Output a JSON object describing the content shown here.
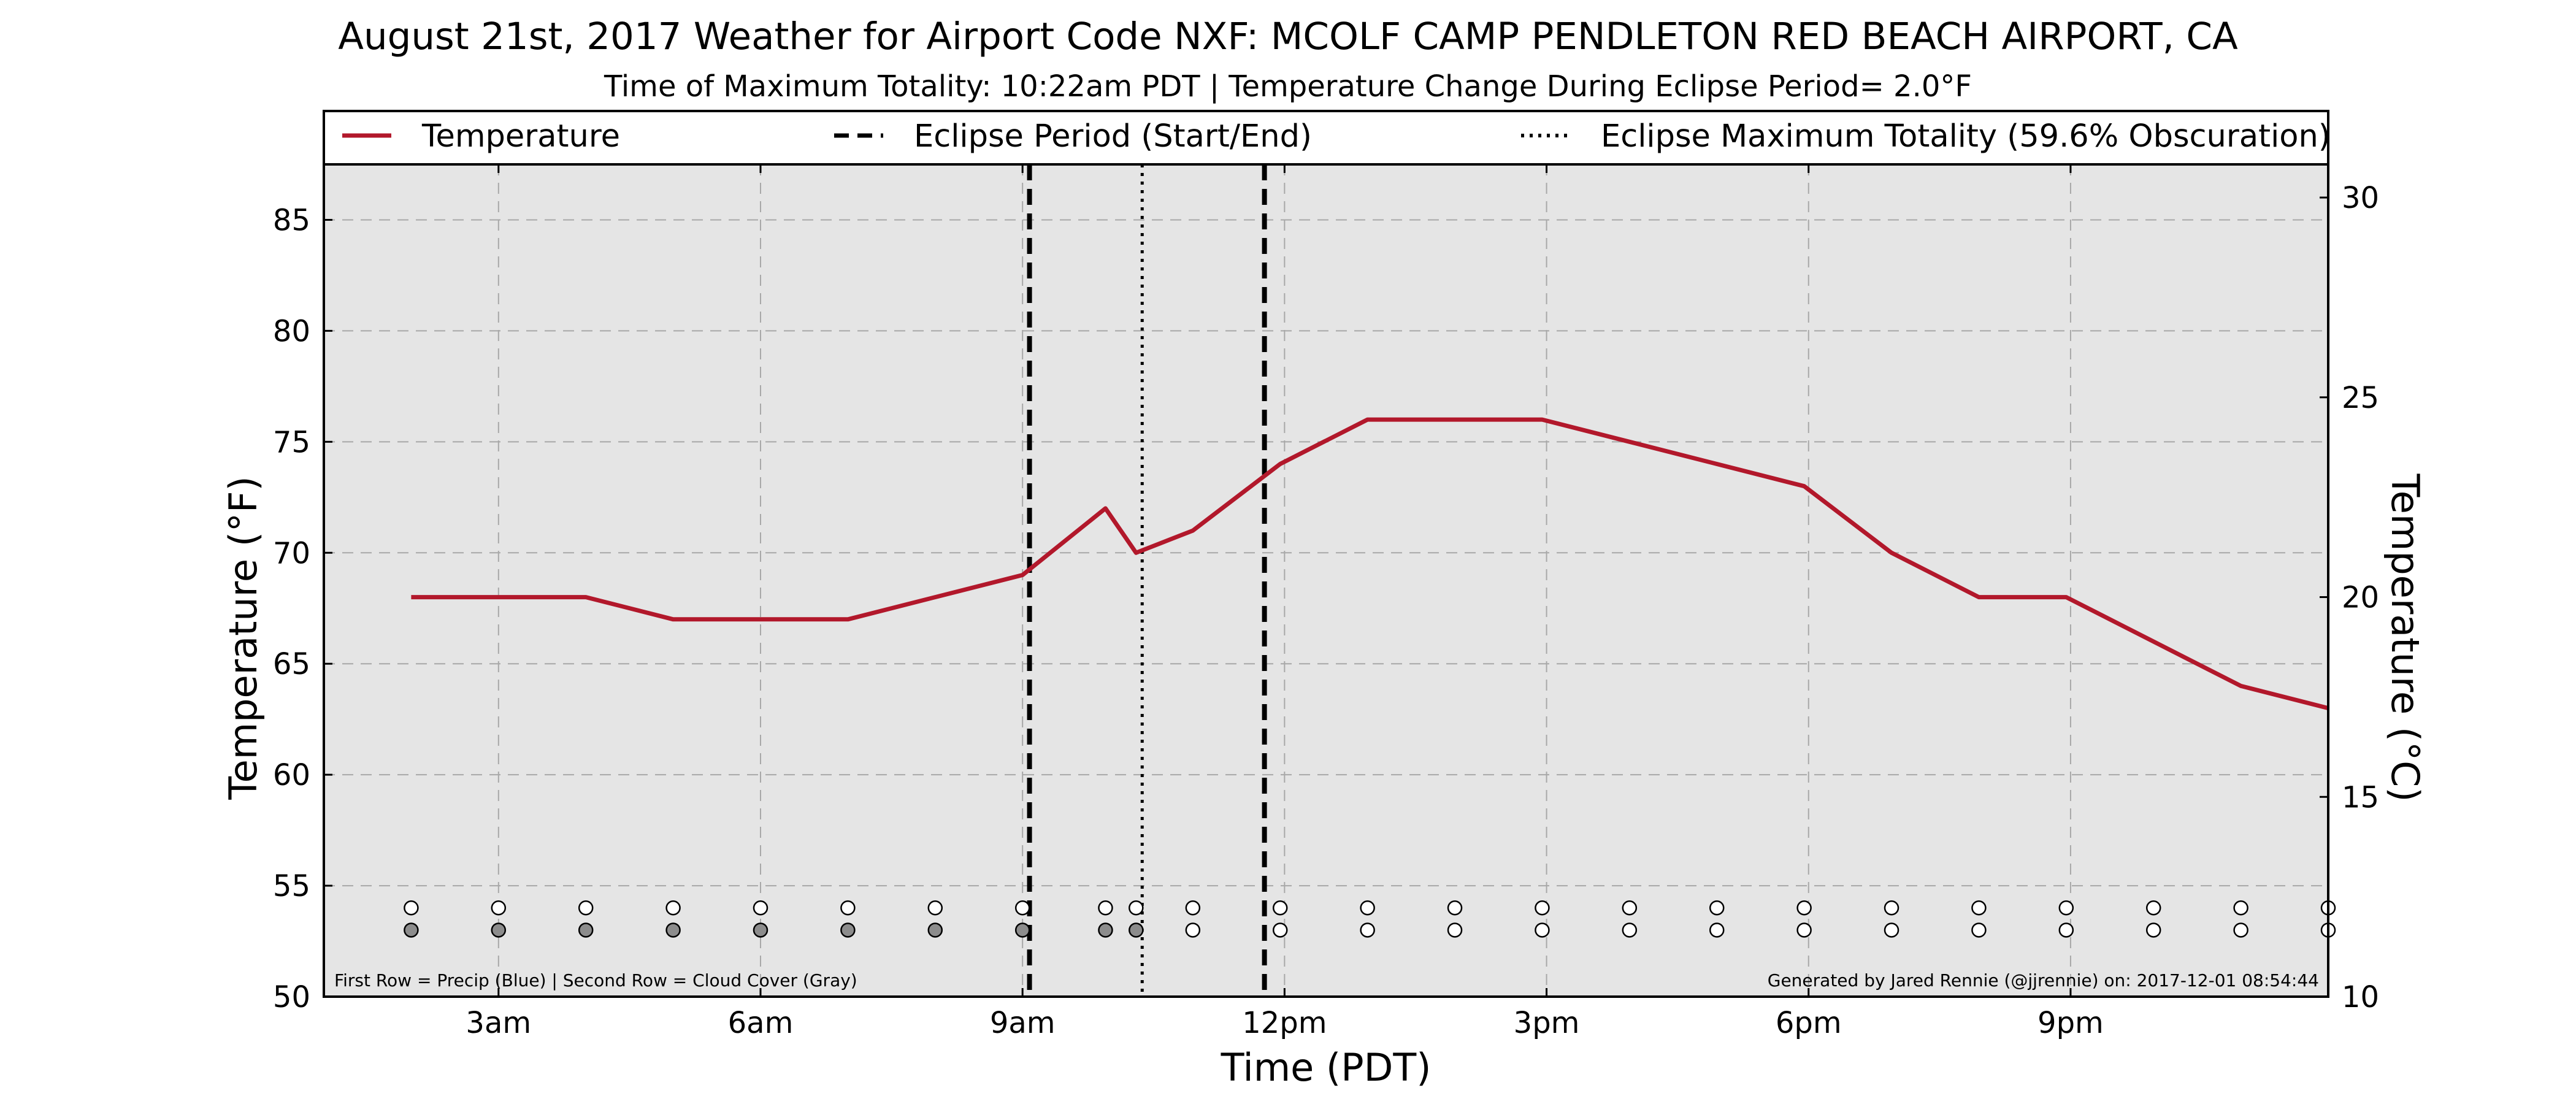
{
  "chart_data": {
    "type": "line",
    "title": "August 21st, 2017 Weather for Airport Code NXF: MCOLF CAMP PENDLETON RED BEACH AIRPORT, CA",
    "subtitle": "Time of Maximum Totality: 10:22am PDT | Temperature Change During Eclipse Period= 2.0°F",
    "xlabel": "Time (PDT)",
    "ylabel": "Temperature (°F)",
    "ylabel_right": "Temperature (°C)",
    "xlim": [
      1.0,
      23.95
    ],
    "ylim": [
      50,
      87.5
    ],
    "ylim_right": [
      10,
      30.83
    ],
    "x_ticks": [
      3,
      6,
      9,
      12,
      15,
      18,
      21
    ],
    "x_tick_labels": [
      "3am",
      "6am",
      "9am",
      "12pm",
      "3pm",
      "6pm",
      "9pm"
    ],
    "y_ticks": [
      50,
      55,
      60,
      65,
      70,
      75,
      80,
      85
    ],
    "y_ticks_right": [
      10,
      15,
      20,
      25,
      30
    ],
    "grid": true,
    "legend_placement": "top",
    "legend": [
      {
        "label": "Temperature",
        "style": "solid",
        "color": "#b2182b"
      },
      {
        "label": "Eclipse Period (Start/End)",
        "style": "dashed",
        "color": "#000000"
      },
      {
        "label": "Eclipse Maximum Totality (59.6% Obscuration)",
        "style": "dotted",
        "color": "#000000"
      }
    ],
    "series": [
      {
        "name": "Temperature",
        "color": "#b2182b",
        "x": [
          2,
          3,
          4,
          5,
          6,
          7,
          8,
          9,
          9.95,
          10.3,
          10.95,
          11.95,
          12.95,
          13.95,
          14.95,
          15.95,
          16.95,
          17.95,
          18.95,
          19.95,
          20.95,
          21.95,
          22.95,
          23.95
        ],
        "y": [
          68,
          68,
          68,
          67,
          67,
          67,
          68,
          69,
          72,
          70,
          71,
          74,
          76,
          76,
          76,
          75,
          74,
          73,
          70,
          68,
          68,
          66,
          64,
          63
        ]
      }
    ],
    "eclipse_start": 9.08,
    "eclipse_end": 11.77,
    "eclipse_max": 10.37,
    "precip_row_y": 54,
    "cloud_row_y": 53,
    "observations": [
      {
        "x": 2,
        "precip": "#ffffff",
        "cloud": "#8c8c8c"
      },
      {
        "x": 3,
        "precip": "#ffffff",
        "cloud": "#8c8c8c"
      },
      {
        "x": 4,
        "precip": "#ffffff",
        "cloud": "#8c8c8c"
      },
      {
        "x": 5,
        "precip": "#ffffff",
        "cloud": "#8c8c8c"
      },
      {
        "x": 6,
        "precip": "#ffffff",
        "cloud": "#8c8c8c"
      },
      {
        "x": 7,
        "precip": "#ffffff",
        "cloud": "#8c8c8c"
      },
      {
        "x": 8,
        "precip": "#ffffff",
        "cloud": "#8c8c8c"
      },
      {
        "x": 9,
        "precip": "#ffffff",
        "cloud": "#8c8c8c"
      },
      {
        "x": 9.95,
        "precip": "#ffffff",
        "cloud": "#8c8c8c"
      },
      {
        "x": 10.3,
        "precip": "#ffffff",
        "cloud": "#8c8c8c"
      },
      {
        "x": 10.95,
        "precip": "#ffffff",
        "cloud": "#ffffff"
      },
      {
        "x": 11.95,
        "precip": "#ffffff",
        "cloud": "#ffffff"
      },
      {
        "x": 12.95,
        "precip": "#ffffff",
        "cloud": "#ffffff"
      },
      {
        "x": 13.95,
        "precip": "#ffffff",
        "cloud": "#ffffff"
      },
      {
        "x": 14.95,
        "precip": "#ffffff",
        "cloud": "#ffffff"
      },
      {
        "x": 15.95,
        "precip": "#ffffff",
        "cloud": "#ffffff"
      },
      {
        "x": 16.95,
        "precip": "#ffffff",
        "cloud": "#ffffff"
      },
      {
        "x": 17.95,
        "precip": "#ffffff",
        "cloud": "#ffffff"
      },
      {
        "x": 18.95,
        "precip": "#ffffff",
        "cloud": "#ffffff"
      },
      {
        "x": 19.95,
        "precip": "#ffffff",
        "cloud": "#ffffff"
      },
      {
        "x": 20.95,
        "precip": "#ffffff",
        "cloud": "#ffffff"
      },
      {
        "x": 21.95,
        "precip": "#ffffff",
        "cloud": "#ffffff"
      },
      {
        "x": 22.95,
        "precip": "#ffffff",
        "cloud": "#ffffff"
      },
      {
        "x": 23.95,
        "precip": "#ffffff",
        "cloud": "#ffffff"
      }
    ],
    "notes": {
      "left": "First Row = Precip (Blue) | Second Row = Cloud Cover (Gray)",
      "right": "Generated by Jared Rennie (@jjrennie) on: 2017-12-01 08:54:44"
    },
    "colors": {
      "plot_background": "#e5e5e5",
      "grid": "#a8a8a8",
      "temperature": "#b2182b"
    }
  }
}
